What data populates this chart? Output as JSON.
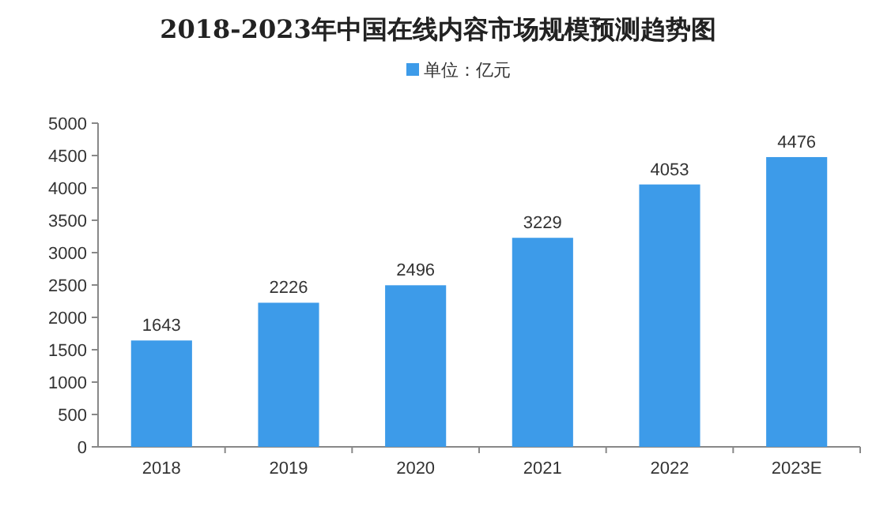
{
  "chart_data": {
    "type": "bar",
    "title": "2018-2023年中国在线内容市场规模预测趋势图",
    "categories": [
      "2018",
      "2019",
      "2020",
      "2021",
      "2022",
      "2023E"
    ],
    "series": [
      {
        "name": "单位：亿元",
        "color": "#3d9be9",
        "values": [
          1643,
          2226,
          2496,
          3229,
          4053,
          4476
        ]
      }
    ],
    "ylim": [
      0,
      5000
    ],
    "yticks": [
      0,
      500,
      1000,
      1500,
      2000,
      2500,
      3000,
      3500,
      4000,
      4500,
      5000
    ],
    "data_labels": true,
    "legend": "top"
  }
}
